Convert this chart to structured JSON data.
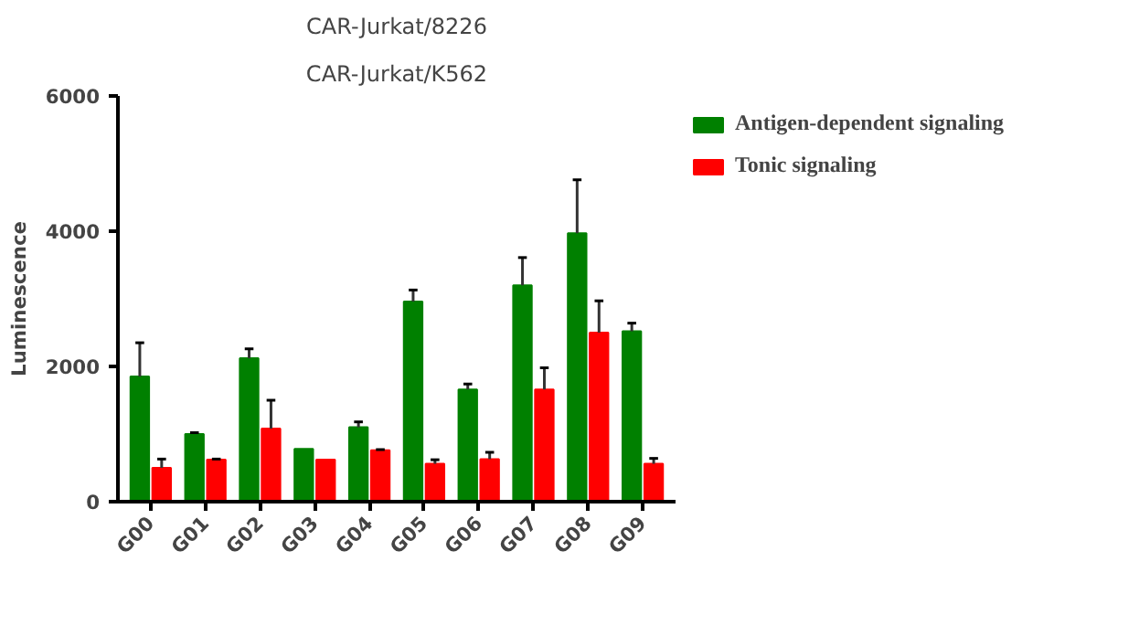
{
  "chart_data": {
    "type": "bar",
    "title": "CAR-Jurkat/8226",
    "subtitle": "CAR-Jurkat/K562",
    "ylabel": "Luminescence",
    "categories": [
      "G00",
      "G01",
      "G02",
      "G03",
      "G04",
      "G05",
      "G06",
      "G07",
      "G08",
      "G09"
    ],
    "series": [
      {
        "name": "Antigen-dependent signaling",
        "color": "#008000",
        "values": [
          1850,
          1000,
          2120,
          780,
          1100,
          2960,
          1660,
          3200,
          3970,
          2520
        ],
        "errors": [
          [
            1850,
            2350
          ],
          [
            1000,
            1020
          ],
          [
            2120,
            2260
          ],
          null,
          [
            1100,
            1180
          ],
          [
            2960,
            3130
          ],
          [
            1660,
            1740
          ],
          [
            3200,
            3610
          ],
          [
            3970,
            4760
          ],
          [
            2520,
            2640
          ]
        ]
      },
      {
        "name": "Tonic signaling",
        "color": "#ff0000",
        "values": [
          500,
          620,
          1080,
          620,
          760,
          560,
          630,
          1660,
          2500,
          560
        ],
        "errors": [
          [
            500,
            630
          ],
          [
            620,
            630
          ],
          [
            1080,
            1500
          ],
          null,
          [
            760,
            770
          ],
          [
            560,
            620
          ],
          [
            630,
            730
          ],
          [
            1660,
            1980
          ],
          [
            2500,
            2970
          ],
          [
            560,
            640
          ]
        ]
      }
    ],
    "ylim": [
      0,
      6000
    ],
    "yticks": [
      0,
      2000,
      4000,
      6000
    ],
    "grid": false,
    "legend": "right"
  }
}
